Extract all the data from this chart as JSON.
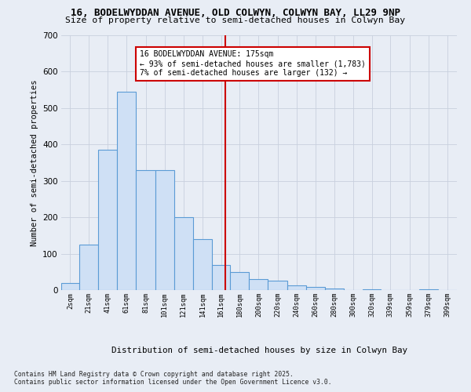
{
  "title_line1": "16, BODELWYDDAN AVENUE, OLD COLWYN, COLWYN BAY, LL29 9NP",
  "title_line2": "Size of property relative to semi-detached houses in Colwyn Bay",
  "xlabel": "Distribution of semi-detached houses by size in Colwyn Bay",
  "ylabel": "Number of semi-detached properties",
  "bin_labels": [
    "2sqm",
    "21sqm",
    "41sqm",
    "61sqm",
    "81sqm",
    "101sqm",
    "121sqm",
    "141sqm",
    "161sqm",
    "180sqm",
    "200sqm",
    "220sqm",
    "240sqm",
    "260sqm",
    "280sqm",
    "300sqm",
    "320sqm",
    "339sqm",
    "359sqm",
    "379sqm",
    "399sqm"
  ],
  "bin_edges": [
    2,
    21,
    41,
    61,
    81,
    101,
    121,
    141,
    161,
    180,
    200,
    220,
    240,
    260,
    280,
    300,
    320,
    339,
    359,
    379,
    399,
    419
  ],
  "bar_heights": [
    20,
    125,
    385,
    545,
    330,
    330,
    200,
    140,
    70,
    50,
    30,
    25,
    12,
    8,
    5,
    0,
    3,
    0,
    0,
    3,
    0
  ],
  "bar_color": "#cfe0f5",
  "bar_edge_color": "#5b9bd5",
  "property_size": 175,
  "vline_color": "#cc0000",
  "annotation_text": "16 BODELWYDDAN AVENUE: 175sqm\n← 93% of semi-detached houses are smaller (1,783)\n7% of semi-detached houses are larger (132) →",
  "annotation_box_color": "#cc0000",
  "ylim": [
    0,
    700
  ],
  "yticks": [
    0,
    100,
    200,
    300,
    400,
    500,
    600,
    700
  ],
  "footer_line1": "Contains HM Land Registry data © Crown copyright and database right 2025.",
  "footer_line2": "Contains public sector information licensed under the Open Government Licence v3.0.",
  "background_color": "#e8edf5",
  "grid_color": "#c8d0de"
}
